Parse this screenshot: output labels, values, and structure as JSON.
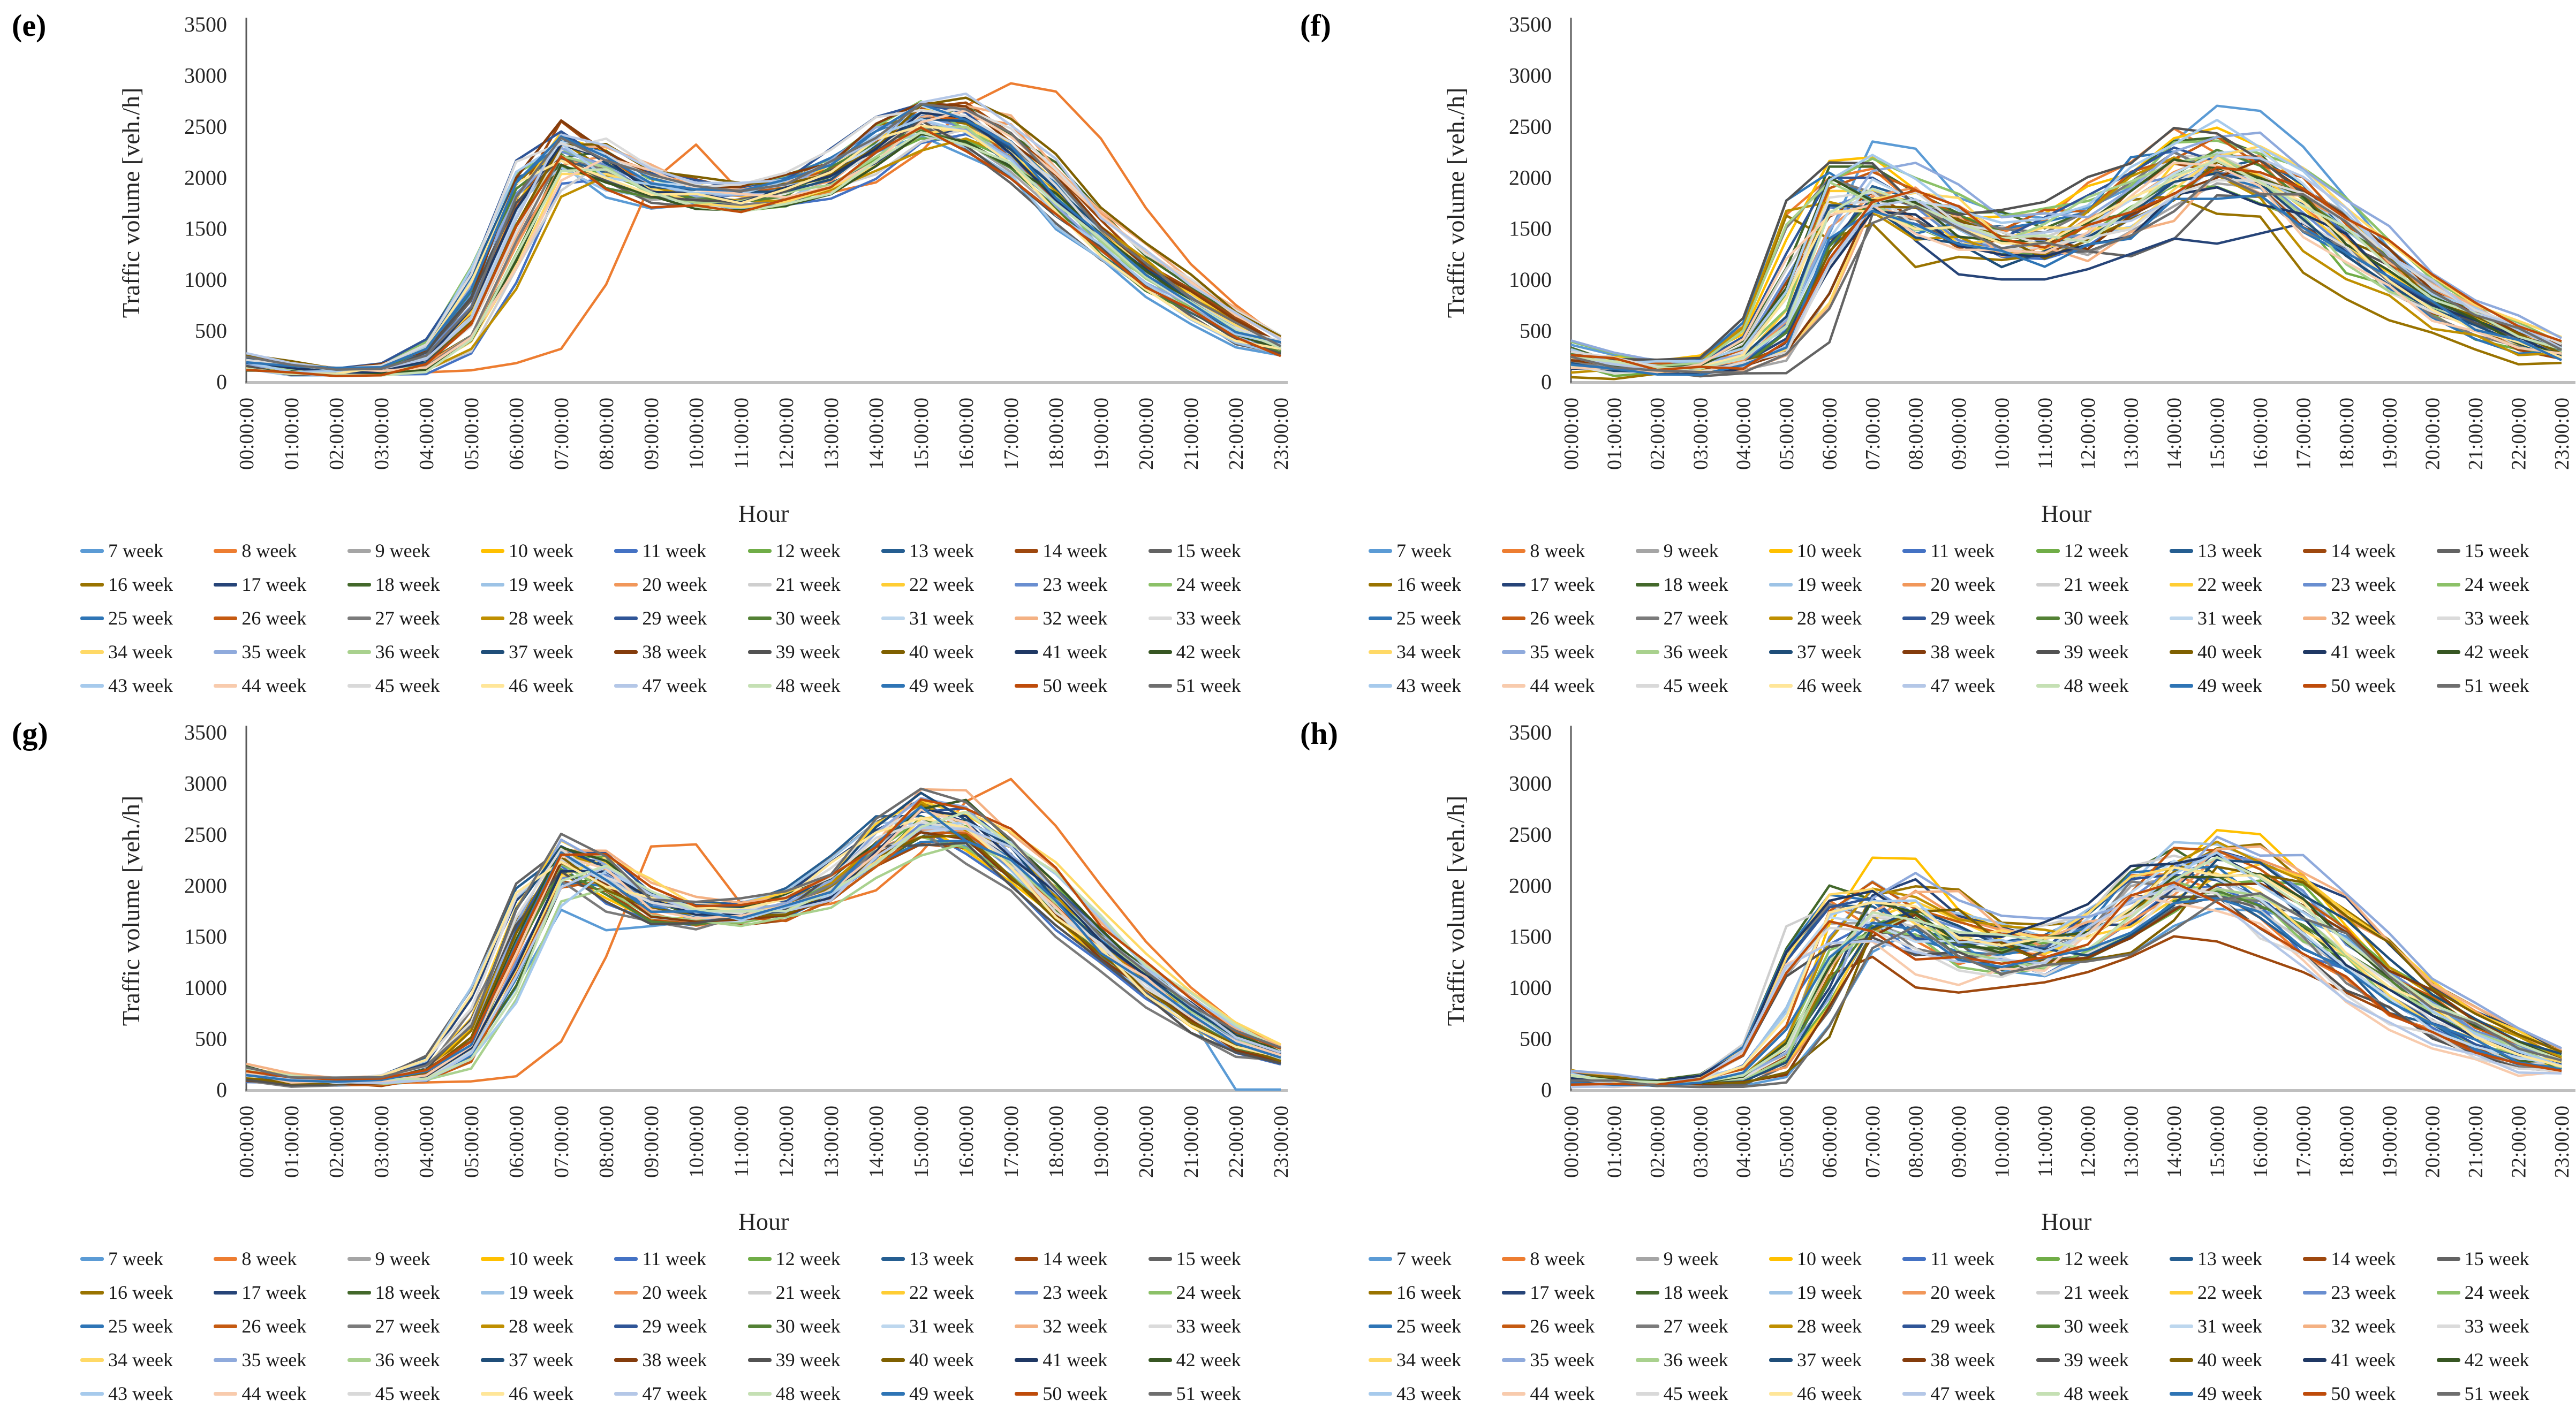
{
  "figure": {
    "panels": [
      {
        "label": "(e)"
      },
      {
        "label": "(f)"
      },
      {
        "label": "(g)"
      },
      {
        "label": "(h)"
      }
    ]
  },
  "axis": {
    "ylabel": "Traffic volume [veh./h]",
    "xlabel": "Hour",
    "yticks": [
      "0",
      "500",
      "1000",
      "1500",
      "2000",
      "2500",
      "3000",
      "3500"
    ],
    "xticks": [
      "00:00:00",
      "01:00:00",
      "02:00:00",
      "03:00:00",
      "04:00:00",
      "05:00:00",
      "06:00:00",
      "07:00:00",
      "08:00:00",
      "09:00:00",
      "10:00:00",
      "11:00:00",
      "12:00:00",
      "13:00:00",
      "14:00:00",
      "15:00:00",
      "16:00:00",
      "17:00:00",
      "18:00:00",
      "19:00:00",
      "20:00:00",
      "21:00:00",
      "22:00:00",
      "23:00:00"
    ]
  },
  "legend": {
    "entries": [
      {
        "label": "7 week",
        "color": "#5B9BD5"
      },
      {
        "label": "8 week",
        "color": "#ED7D31"
      },
      {
        "label": "9 week",
        "color": "#A5A5A5"
      },
      {
        "label": "10 week",
        "color": "#FFC000"
      },
      {
        "label": "11 week",
        "color": "#4472C4"
      },
      {
        "label": "12 week",
        "color": "#70AD47"
      },
      {
        "label": "13 week",
        "color": "#255E91"
      },
      {
        "label": "14 week",
        "color": "#9E480E"
      },
      {
        "label": "15 week",
        "color": "#636363"
      },
      {
        "label": "16 week",
        "color": "#997300"
      },
      {
        "label": "17 week",
        "color": "#264478"
      },
      {
        "label": "18 week",
        "color": "#43682B"
      },
      {
        "label": "19 week",
        "color": "#9DC3E6"
      },
      {
        "label": "20 week",
        "color": "#F1975A"
      },
      {
        "label": "21 week",
        "color": "#CFCFCF"
      },
      {
        "label": "22 week",
        "color": "#FFCD33"
      },
      {
        "label": "23 week",
        "color": "#698ED0"
      },
      {
        "label": "24 week",
        "color": "#8CC168"
      },
      {
        "label": "25 week",
        "color": "#2E75B6"
      },
      {
        "label": "26 week",
        "color": "#C55A11"
      },
      {
        "label": "27 week",
        "color": "#7B7B7B"
      },
      {
        "label": "28 week",
        "color": "#BF8F00"
      },
      {
        "label": "29 week",
        "color": "#2F5597"
      },
      {
        "label": "30 week",
        "color": "#538135"
      },
      {
        "label": "31 week",
        "color": "#BDD7EE"
      },
      {
        "label": "32 week",
        "color": "#F4B183"
      },
      {
        "label": "33 week",
        "color": "#DBDBDB"
      },
      {
        "label": "34 week",
        "color": "#FFD966"
      },
      {
        "label": "35 week",
        "color": "#8FAADC"
      },
      {
        "label": "36 week",
        "color": "#A9D18E"
      },
      {
        "label": "37 week",
        "color": "#1F4E79"
      },
      {
        "label": "38 week",
        "color": "#843C0C"
      },
      {
        "label": "39 week",
        "color": "#525252"
      },
      {
        "label": "40 week",
        "color": "#7F6000"
      },
      {
        "label": "41 week",
        "color": "#1F3864"
      },
      {
        "label": "42 week",
        "color": "#375623"
      },
      {
        "label": "43 week",
        "color": "#A6CAEC"
      },
      {
        "label": "44 week",
        "color": "#F8CBAD"
      },
      {
        "label": "45 week",
        "color": "#D9D9D9"
      },
      {
        "label": "46 week",
        "color": "#FFE699"
      },
      {
        "label": "47 week",
        "color": "#B4C7E7"
      },
      {
        "label": "48 week",
        "color": "#C5E0B4"
      },
      {
        "label": "49 week",
        "color": "#2E74B5"
      },
      {
        "label": "50 week",
        "color": "#BE4B0A"
      },
      {
        "label": "51 week",
        "color": "#6E6E6E"
      }
    ]
  },
  "chart_data": [
    {
      "panel": "(e)",
      "type": "line",
      "x": [
        "00:00:00",
        "01:00:00",
        "02:00:00",
        "03:00:00",
        "04:00:00",
        "05:00:00",
        "06:00:00",
        "07:00:00",
        "08:00:00",
        "09:00:00",
        "10:00:00",
        "11:00:00",
        "12:00:00",
        "13:00:00",
        "14:00:00",
        "15:00:00",
        "16:00:00",
        "17:00:00",
        "18:00:00",
        "19:00:00",
        "20:00:00",
        "21:00:00",
        "22:00:00",
        "23:00:00"
      ],
      "xlabel": "Hour",
      "ylabel": "Traffic volume [veh./h]",
      "ylim": [
        0,
        3500
      ],
      "ytick_interval": 500,
      "grid": false,
      "series_count": 45,
      "series_names": [
        "7 week",
        "8 week",
        "9 week",
        "10 week",
        "11 week",
        "12 week",
        "13 week",
        "14 week",
        "15 week",
        "16 week",
        "17 week",
        "18 week",
        "19 week",
        "20 week",
        "21 week",
        "22 week",
        "23 week",
        "24 week",
        "25 week",
        "26 week",
        "27 week",
        "28 week",
        "29 week",
        "30 week",
        "31 week",
        "32 week",
        "33 week",
        "34 week",
        "35 week",
        "36 week",
        "37 week",
        "38 week",
        "39 week",
        "40 week",
        "41 week",
        "42 week",
        "43 week",
        "44 week",
        "45 week",
        "46 week",
        "47 week",
        "48 week",
        "49 week",
        "50 week",
        "51 week"
      ],
      "center": [
        210,
        120,
        95,
        105,
        180,
        550,
        1600,
        2350,
        2150,
        1900,
        1850,
        1800,
        1850,
        2000,
        2300,
        2600,
        2550,
        2300,
        1900,
        1450,
        1100,
        820,
        540,
        330
      ],
      "spread": [
        90,
        60,
        50,
        50,
        70,
        150,
        250,
        220,
        250,
        180,
        150,
        140,
        140,
        160,
        200,
        230,
        250,
        250,
        220,
        180,
        150,
        130,
        110,
        80
      ],
      "phase_hours": 0.5,
      "outliers": [
        {
          "series_label": "8 week",
          "series_index": 1,
          "values": [
            150,
            70,
            60,
            70,
            90,
            110,
            180,
            320,
            950,
            1950,
            2320,
            1850,
            1800,
            1850,
            1950,
            2250,
            2700,
            2920,
            2840,
            2380,
            1700,
            1150,
            750,
            420
          ]
        }
      ]
    },
    {
      "panel": "(f)",
      "type": "line",
      "x": [
        "00:00:00",
        "01:00:00",
        "02:00:00",
        "03:00:00",
        "04:00:00",
        "05:00:00",
        "06:00:00",
        "07:00:00",
        "08:00:00",
        "09:00:00",
        "10:00:00",
        "11:00:00",
        "12:00:00",
        "13:00:00",
        "14:00:00",
        "15:00:00",
        "16:00:00",
        "17:00:00",
        "18:00:00",
        "19:00:00",
        "20:00:00",
        "21:00:00",
        "22:00:00",
        "23:00:00"
      ],
      "xlabel": "Hour",
      "ylabel": "Traffic volume [veh./h]",
      "ylim": [
        0,
        3500
      ],
      "ytick_interval": 500,
      "grid": false,
      "series_count": 45,
      "series_names": [
        "7 week",
        "8 week",
        "9 week",
        "10 week",
        "11 week",
        "12 week",
        "13 week",
        "14 week",
        "15 week",
        "16 week",
        "17 week",
        "18 week",
        "19 week",
        "20 week",
        "21 week",
        "22 week",
        "23 week",
        "24 week",
        "25 week",
        "26 week",
        "27 week",
        "28 week",
        "29 week",
        "30 week",
        "31 week",
        "32 week",
        "33 week",
        "34 week",
        "35 week",
        "36 week",
        "37 week",
        "38 week",
        "39 week",
        "40 week",
        "41 week",
        "42 week",
        "43 week",
        "44 week",
        "45 week",
        "46 week",
        "47 week",
        "48 week",
        "49 week",
        "50 week",
        "51 week"
      ],
      "center": [
        260,
        150,
        120,
        130,
        220,
        600,
        1800,
        1900,
        1750,
        1500,
        1400,
        1400,
        1500,
        1750,
        2100,
        2200,
        2050,
        1800,
        1450,
        1100,
        820,
        620,
        430,
        280
      ],
      "spread": [
        140,
        100,
        80,
        80,
        110,
        250,
        450,
        350,
        350,
        350,
        330,
        320,
        300,
        300,
        350,
        380,
        380,
        350,
        300,
        250,
        200,
        160,
        130,
        100
      ],
      "phase_hours": 1.0,
      "outliers": [
        {
          "series_label": "7 week",
          "series_index": 0,
          "values": [
            360,
            260,
            210,
            210,
            260,
            520,
            1450,
            2350,
            2280,
            1800,
            1650,
            1600,
            1700,
            1900,
            2350,
            2700,
            2650,
            2300,
            1800,
            1300,
            950,
            700,
            500,
            350
          ]
        },
        {
          "series_label": "17 week",
          "series_index": 10,
          "values": [
            250,
            150,
            120,
            130,
            180,
            420,
            1350,
            1800,
            1380,
            1050,
            1000,
            1000,
            1100,
            1250,
            1400,
            1350,
            1450,
            1550,
            1280,
            1000,
            750,
            550,
            400,
            280
          ]
        }
      ]
    },
    {
      "panel": "(g)",
      "type": "line",
      "x": [
        "00:00:00",
        "01:00:00",
        "02:00:00",
        "03:00:00",
        "04:00:00",
        "05:00:00",
        "06:00:00",
        "07:00:00",
        "08:00:00",
        "09:00:00",
        "10:00:00",
        "11:00:00",
        "12:00:00",
        "13:00:00",
        "14:00:00",
        "15:00:00",
        "16:00:00",
        "17:00:00",
        "18:00:00",
        "19:00:00",
        "20:00:00",
        "21:00:00",
        "22:00:00",
        "23:00:00"
      ],
      "xlabel": "Hour",
      "ylabel": "Traffic volume [veh./h]",
      "ylim": [
        0,
        3500
      ],
      "ytick_interval": 500,
      "grid": false,
      "series_count": 45,
      "series_names": [
        "7 week",
        "8 week",
        "9 week",
        "10 week",
        "11 week",
        "12 week",
        "13 week",
        "14 week",
        "15 week",
        "16 week",
        "17 week",
        "18 week",
        "19 week",
        "20 week",
        "21 week",
        "22 week",
        "23 week",
        "24 week",
        "25 week",
        "26 week",
        "27 week",
        "28 week",
        "29 week",
        "30 week",
        "31 week",
        "32 week",
        "33 week",
        "34 week",
        "35 week",
        "36 week",
        "37 week",
        "38 week",
        "39 week",
        "40 week",
        "41 week",
        "42 week",
        "43 week",
        "44 week",
        "45 week",
        "46 week",
        "47 week",
        "48 week",
        "49 week",
        "50 week",
        "51 week"
      ],
      "center": [
        170,
        90,
        80,
        90,
        160,
        450,
        1500,
        2350,
        2150,
        1800,
        1750,
        1750,
        1800,
        2000,
        2400,
        2750,
        2600,
        2300,
        1900,
        1450,
        1080,
        780,
        480,
        330
      ],
      "spread": [
        80,
        50,
        40,
        50,
        80,
        150,
        280,
        230,
        250,
        200,
        170,
        150,
        150,
        180,
        220,
        330,
        300,
        280,
        230,
        190,
        160,
        130,
        110,
        80
      ],
      "phase_hours": 0.5,
      "outliers": [
        {
          "series_label": "7 week",
          "series_index": 0,
          "values": [
            140,
            60,
            40,
            50,
            80,
            350,
            1000,
            1760,
            1560,
            1600,
            1650,
            1700,
            1800,
            2000,
            2300,
            2520,
            2380,
            2100,
            1700,
            1280,
            900,
            700,
            0,
            0
          ]
        },
        {
          "series_label": "8 week",
          "series_index": 1,
          "values": [
            210,
            90,
            60,
            60,
            70,
            80,
            130,
            470,
            1300,
            2380,
            2400,
            1820,
            1760,
            1820,
            1950,
            2320,
            2820,
            3040,
            2580,
            2000,
            1450,
            1000,
            650,
            400
          ]
        }
      ]
    },
    {
      "panel": "(h)",
      "type": "line",
      "x": [
        "00:00:00",
        "01:00:00",
        "02:00:00",
        "03:00:00",
        "04:00:00",
        "05:00:00",
        "06:00:00",
        "07:00:00",
        "08:00:00",
        "09:00:00",
        "10:00:00",
        "11:00:00",
        "12:00:00",
        "13:00:00",
        "14:00:00",
        "15:00:00",
        "16:00:00",
        "17:00:00",
        "18:00:00",
        "19:00:00",
        "20:00:00",
        "21:00:00",
        "22:00:00",
        "23:00:00"
      ],
      "xlabel": "Hour",
      "ylabel": "Traffic volume [veh./h]",
      "ylim": [
        0,
        3500
      ],
      "ytick_interval": 500,
      "grid": false,
      "series_count": 45,
      "series_names": [
        "7 week",
        "8 week",
        "9 week",
        "10 week",
        "11 week",
        "12 week",
        "13 week",
        "14 week",
        "15 week",
        "16 week",
        "17 week",
        "18 week",
        "19 week",
        "20 week",
        "21 week",
        "22 week",
        "23 week",
        "24 week",
        "25 week",
        "26 week",
        "27 week",
        "28 week",
        "29 week",
        "30 week",
        "31 week",
        "32 week",
        "33 week",
        "34 week",
        "35 week",
        "36 week",
        "37 week",
        "38 week",
        "39 week",
        "40 week",
        "41 week",
        "42 week",
        "43 week",
        "44 week",
        "45 week",
        "46 week",
        "47 week",
        "48 week",
        "49 week",
        "50 week",
        "51 week"
      ],
      "center": [
        130,
        70,
        60,
        70,
        130,
        450,
        1500,
        1800,
        1700,
        1450,
        1350,
        1350,
        1450,
        1700,
        2100,
        2150,
        2000,
        1750,
        1400,
        1050,
        780,
        560,
        380,
        230
      ],
      "spread": [
        70,
        40,
        35,
        40,
        70,
        200,
        400,
        330,
        330,
        330,
        320,
        300,
        280,
        280,
        330,
        360,
        350,
        320,
        270,
        220,
        170,
        140,
        110,
        80
      ],
      "phase_hours": 1.0,
      "outliers": [
        {
          "series_label": "10 week",
          "series_index": 3,
          "values": [
            100,
            50,
            40,
            50,
            80,
            420,
            1620,
            2270,
            2260,
            1760,
            1560,
            1500,
            1560,
            1700,
            2120,
            2540,
            2500,
            2100,
            1600,
            1150,
            800,
            550,
            350,
            200
          ]
        },
        {
          "series_label": "14 week",
          "series_index": 7,
          "values": [
            120,
            60,
            50,
            60,
            90,
            320,
            1120,
            1300,
            1000,
            950,
            1000,
            1050,
            1150,
            1300,
            1500,
            1450,
            1300,
            1150,
            950,
            750,
            550,
            400,
            280,
            180
          ]
        }
      ]
    }
  ]
}
